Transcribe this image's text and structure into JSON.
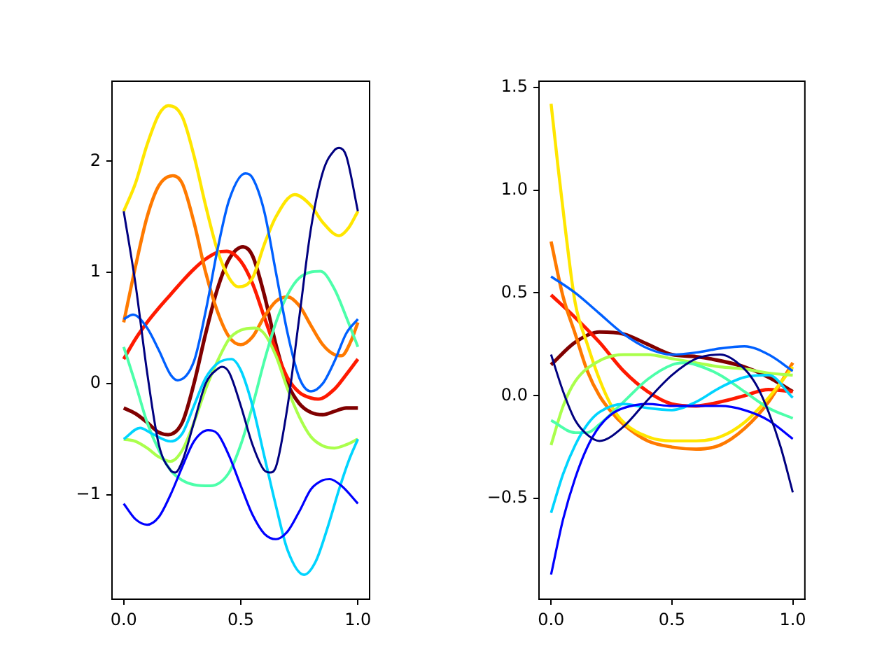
{
  "chart_data": [
    {
      "type": "line",
      "xlim": [
        -0.05,
        1.05
      ],
      "ylim": [
        -1.94,
        2.72
      ],
      "xticks": [
        {
          "value": 0,
          "label": "0.0"
        },
        {
          "value": 0.5,
          "label": "0.5"
        },
        {
          "value": 1,
          "label": "1.0"
        }
      ],
      "yticks": [
        {
          "value": -1,
          "label": "−1"
        },
        0,
        1,
        2
      ],
      "grid": false,
      "legend": false,
      "series": [
        {
          "color": "#000080",
          "x": [
            0,
            0.05,
            0.1,
            0.15,
            0.2,
            0.22,
            0.25,
            0.3,
            0.35,
            0.4,
            0.42,
            0.45,
            0.5,
            0.55,
            0.6,
            0.625,
            0.65,
            0.7,
            0.75,
            0.8,
            0.85,
            0.9,
            0.92,
            0.95,
            1
          ],
          "values": [
            1.55,
            0.9,
            0.1,
            -0.55,
            -0.78,
            -0.8,
            -0.7,
            -0.35,
            0,
            0.13,
            0.15,
            0.1,
            -0.2,
            -0.55,
            -0.78,
            -0.8,
            -0.75,
            -0.2,
            0.6,
            1.4,
            1.9,
            2.1,
            2.12,
            2.05,
            1.55
          ]
        },
        {
          "color": "#0000ff",
          "x": [
            0,
            0.05,
            0.1,
            0.15,
            0.2,
            0.25,
            0.3,
            0.36,
            0.4,
            0.45,
            0.5,
            0.55,
            0.6,
            0.65,
            0.7,
            0.75,
            0.8,
            0.85,
            0.88,
            0.93,
            1
          ],
          "values": [
            -1.08,
            -1.22,
            -1.27,
            -1.2,
            -1.0,
            -0.75,
            -0.52,
            -0.42,
            -0.45,
            -0.65,
            -0.92,
            -1.18,
            -1.35,
            -1.4,
            -1.33,
            -1.15,
            -0.95,
            -0.87,
            -0.86,
            -0.92,
            -1.08
          ]
        },
        {
          "color": "#0060ff",
          "x": [
            0,
            0.04,
            0.1,
            0.15,
            0.2,
            0.23,
            0.3,
            0.35,
            0.4,
            0.45,
            0.52,
            0.55,
            0.6,
            0.65,
            0.7,
            0.75,
            0.8,
            0.85,
            0.9,
            0.95,
            1
          ],
          "values": [
            0.58,
            0.62,
            0.5,
            0.3,
            0.08,
            0.03,
            0.2,
            0.65,
            1.2,
            1.65,
            1.89,
            1.85,
            1.55,
            1.0,
            0.45,
            0.05,
            -0.07,
            0.0,
            0.2,
            0.45,
            0.58
          ]
        },
        {
          "color": "#00d4ff",
          "x": [
            0,
            0.07,
            0.12,
            0.2,
            0.25,
            0.3,
            0.35,
            0.4,
            0.46,
            0.5,
            0.55,
            0.6,
            0.65,
            0.7,
            0.77,
            0.82,
            0.87,
            0.92,
            0.96,
            1
          ],
          "values": [
            -0.5,
            -0.4,
            -0.45,
            -0.52,
            -0.45,
            -0.2,
            0.05,
            0.18,
            0.22,
            0.12,
            -0.2,
            -0.65,
            -1.1,
            -1.5,
            -1.72,
            -1.6,
            -1.3,
            -0.95,
            -0.7,
            -0.5
          ]
        },
        {
          "color": "#4cffaa",
          "x": [
            0,
            0.05,
            0.1,
            0.15,
            0.2,
            0.25,
            0.3,
            0.37,
            0.45,
            0.5,
            0.55,
            0.6,
            0.65,
            0.7,
            0.75,
            0.84,
            0.9,
            0.95,
            1
          ],
          "values": [
            0.33,
            0.0,
            -0.35,
            -0.6,
            -0.78,
            -0.87,
            -0.91,
            -0.92,
            -0.8,
            -0.55,
            -0.2,
            0.2,
            0.55,
            0.8,
            0.95,
            1.01,
            0.85,
            0.6,
            0.33
          ]
        },
        {
          "color": "#aaff4c",
          "x": [
            0,
            0.05,
            0.1,
            0.15,
            0.2,
            0.25,
            0.3,
            0.35,
            0.4,
            0.45,
            0.5,
            0.56,
            0.6,
            0.65,
            0.7,
            0.75,
            0.8,
            0.85,
            0.9,
            0.95,
            1
          ],
          "values": [
            -0.5,
            -0.52,
            -0.58,
            -0.66,
            -0.7,
            -0.6,
            -0.35,
            -0.05,
            0.2,
            0.4,
            0.48,
            0.5,
            0.45,
            0.25,
            -0.05,
            -0.3,
            -0.48,
            -0.56,
            -0.58,
            -0.55,
            -0.5
          ]
        },
        {
          "color": "#ffe600",
          "x": [
            0,
            0.05,
            0.1,
            0.15,
            0.19,
            0.25,
            0.3,
            0.35,
            0.4,
            0.45,
            0.49,
            0.55,
            0.6,
            0.65,
            0.73,
            0.8,
            0.85,
            0.92,
            0.96,
            1
          ],
          "values": [
            1.55,
            1.8,
            2.15,
            2.42,
            2.5,
            2.4,
            2.05,
            1.6,
            1.2,
            0.95,
            0.87,
            0.95,
            1.25,
            1.5,
            1.7,
            1.6,
            1.45,
            1.33,
            1.4,
            1.55
          ]
        },
        {
          "color": "#ff7a00",
          "x": [
            0,
            0.05,
            0.1,
            0.15,
            0.21,
            0.25,
            0.3,
            0.35,
            0.4,
            0.45,
            0.5,
            0.55,
            0.6,
            0.65,
            0.7,
            0.75,
            0.8,
            0.85,
            0.9,
            0.93,
            0.97,
            1
          ],
          "values": [
            0.55,
            1.05,
            1.5,
            1.78,
            1.87,
            1.8,
            1.45,
            1.0,
            0.65,
            0.42,
            0.35,
            0.42,
            0.6,
            0.74,
            0.78,
            0.7,
            0.52,
            0.35,
            0.26,
            0.25,
            0.38,
            0.55
          ]
        },
        {
          "color": "#ff1a00",
          "x": [
            0,
            0.05,
            0.1,
            0.15,
            0.2,
            0.25,
            0.3,
            0.35,
            0.4,
            0.44,
            0.5,
            0.55,
            0.6,
            0.65,
            0.7,
            0.75,
            0.8,
            0.83,
            0.9,
            0.95,
            1
          ],
          "values": [
            0.22,
            0.4,
            0.55,
            0.68,
            0.8,
            0.92,
            1.03,
            1.12,
            1.18,
            1.19,
            1.1,
            0.9,
            0.6,
            0.3,
            0.05,
            -0.08,
            -0.13,
            -0.14,
            -0.05,
            0.08,
            0.22
          ]
        },
        {
          "color": "#800000",
          "x": [
            0,
            0.05,
            0.1,
            0.15,
            0.19,
            0.25,
            0.3,
            0.35,
            0.4,
            0.45,
            0.51,
            0.55,
            0.6,
            0.65,
            0.7,
            0.75,
            0.8,
            0.85,
            0.9,
            0.95,
            1
          ],
          "values": [
            -0.22,
            -0.27,
            -0.35,
            -0.44,
            -0.46,
            -0.35,
            0.0,
            0.45,
            0.85,
            1.12,
            1.23,
            1.15,
            0.8,
            0.35,
            0.0,
            -0.18,
            -0.26,
            -0.28,
            -0.25,
            -0.22,
            -0.22
          ]
        }
      ]
    },
    {
      "type": "line",
      "xlim": [
        -0.05,
        1.05
      ],
      "ylim": [
        -0.99,
        1.53
      ],
      "xticks": [
        {
          "value": 0,
          "label": "0.0"
        },
        {
          "value": 0.5,
          "label": "0.5"
        },
        {
          "value": 1,
          "label": "1.0"
        }
      ],
      "yticks": [
        {
          "value": -0.5,
          "label": "−0.5"
        },
        {
          "value": 0,
          "label": "0.0"
        },
        {
          "value": 0.5,
          "label": "0.5"
        },
        {
          "value": 1,
          "label": "1.0"
        },
        1.5
      ],
      "grid": false,
      "legend": false,
      "series": [
        {
          "color": "#000080",
          "x": [
            0,
            0.05,
            0.1,
            0.15,
            0.2,
            0.3,
            0.4,
            0.5,
            0.6,
            0.7,
            0.8,
            0.85,
            0.9,
            0.95,
            1
          ],
          "values": [
            0.2,
            0.02,
            -0.12,
            -0.19,
            -0.22,
            -0.15,
            -0.02,
            0.1,
            0.18,
            0.2,
            0.13,
            0.05,
            -0.08,
            -0.25,
            -0.47
          ]
        },
        {
          "color": "#0000ff",
          "x": [
            0,
            0.05,
            0.1,
            0.15,
            0.2,
            0.25,
            0.3,
            0.4,
            0.5,
            0.6,
            0.7,
            0.8,
            0.9,
            1
          ],
          "values": [
            -0.87,
            -0.6,
            -0.4,
            -0.25,
            -0.15,
            -0.09,
            -0.06,
            -0.04,
            -0.05,
            -0.05,
            -0.05,
            -0.07,
            -0.12,
            -0.21
          ]
        },
        {
          "color": "#0060ff",
          "x": [
            0,
            0.1,
            0.2,
            0.3,
            0.4,
            0.5,
            0.6,
            0.7,
            0.8,
            0.9,
            1
          ],
          "values": [
            0.58,
            0.5,
            0.4,
            0.3,
            0.23,
            0.2,
            0.21,
            0.23,
            0.24,
            0.2,
            0.12
          ]
        },
        {
          "color": "#00d4ff",
          "x": [
            0,
            0.05,
            0.1,
            0.15,
            0.2,
            0.3,
            0.4,
            0.5,
            0.6,
            0.7,
            0.8,
            0.9,
            1
          ],
          "values": [
            -0.57,
            -0.38,
            -0.24,
            -0.14,
            -0.08,
            -0.04,
            -0.06,
            -0.07,
            -0.03,
            0.04,
            0.09,
            0.1,
            -0.01
          ]
        },
        {
          "color": "#4cffaa",
          "x": [
            0,
            0.1,
            0.15,
            0.2,
            0.3,
            0.4,
            0.5,
            0.55,
            0.6,
            0.7,
            0.8,
            0.9,
            1
          ],
          "values": [
            -0.12,
            -0.18,
            -0.18,
            -0.14,
            -0.03,
            0.08,
            0.15,
            0.16,
            0.15,
            0.1,
            0.02,
            -0.06,
            -0.11
          ]
        },
        {
          "color": "#aaff4c",
          "x": [
            0,
            0.05,
            0.1,
            0.2,
            0.3,
            0.4,
            0.5,
            0.6,
            0.7,
            0.8,
            0.9,
            1
          ],
          "values": [
            -0.24,
            -0.05,
            0.07,
            0.17,
            0.2,
            0.2,
            0.18,
            0.16,
            0.14,
            0.13,
            0.11,
            0.1
          ]
        },
        {
          "color": "#ffe600",
          "x": [
            0,
            0.03,
            0.06,
            0.1,
            0.15,
            0.2,
            0.25,
            0.3,
            0.4,
            0.5,
            0.6,
            0.7,
            0.8,
            0.9,
            1
          ],
          "values": [
            1.42,
            1.1,
            0.8,
            0.45,
            0.25,
            0.08,
            -0.05,
            -0.13,
            -0.2,
            -0.22,
            -0.22,
            -0.2,
            -0.13,
            -0.01,
            0.14
          ]
        },
        {
          "color": "#ff7a00",
          "x": [
            0,
            0.05,
            0.1,
            0.15,
            0.2,
            0.25,
            0.3,
            0.4,
            0.5,
            0.6,
            0.7,
            0.8,
            0.9,
            1
          ],
          "values": [
            0.75,
            0.48,
            0.3,
            0.12,
            0.0,
            -0.08,
            -0.14,
            -0.22,
            -0.25,
            -0.26,
            -0.24,
            -0.16,
            -0.03,
            0.16
          ]
        },
        {
          "color": "#ff1a00",
          "x": [
            0,
            0.1,
            0.2,
            0.3,
            0.4,
            0.5,
            0.6,
            0.7,
            0.8,
            0.9,
            1
          ],
          "values": [
            0.49,
            0.38,
            0.26,
            0.12,
            0.02,
            -0.04,
            -0.05,
            -0.03,
            0.0,
            0.03,
            0.02
          ]
        },
        {
          "color": "#800000",
          "x": [
            0,
            0.1,
            0.2,
            0.3,
            0.4,
            0.5,
            0.6,
            0.7,
            0.8,
            0.9,
            1
          ],
          "values": [
            0.15,
            0.26,
            0.31,
            0.3,
            0.25,
            0.2,
            0.19,
            0.17,
            0.14,
            0.09,
            0.02
          ]
        }
      ]
    }
  ]
}
